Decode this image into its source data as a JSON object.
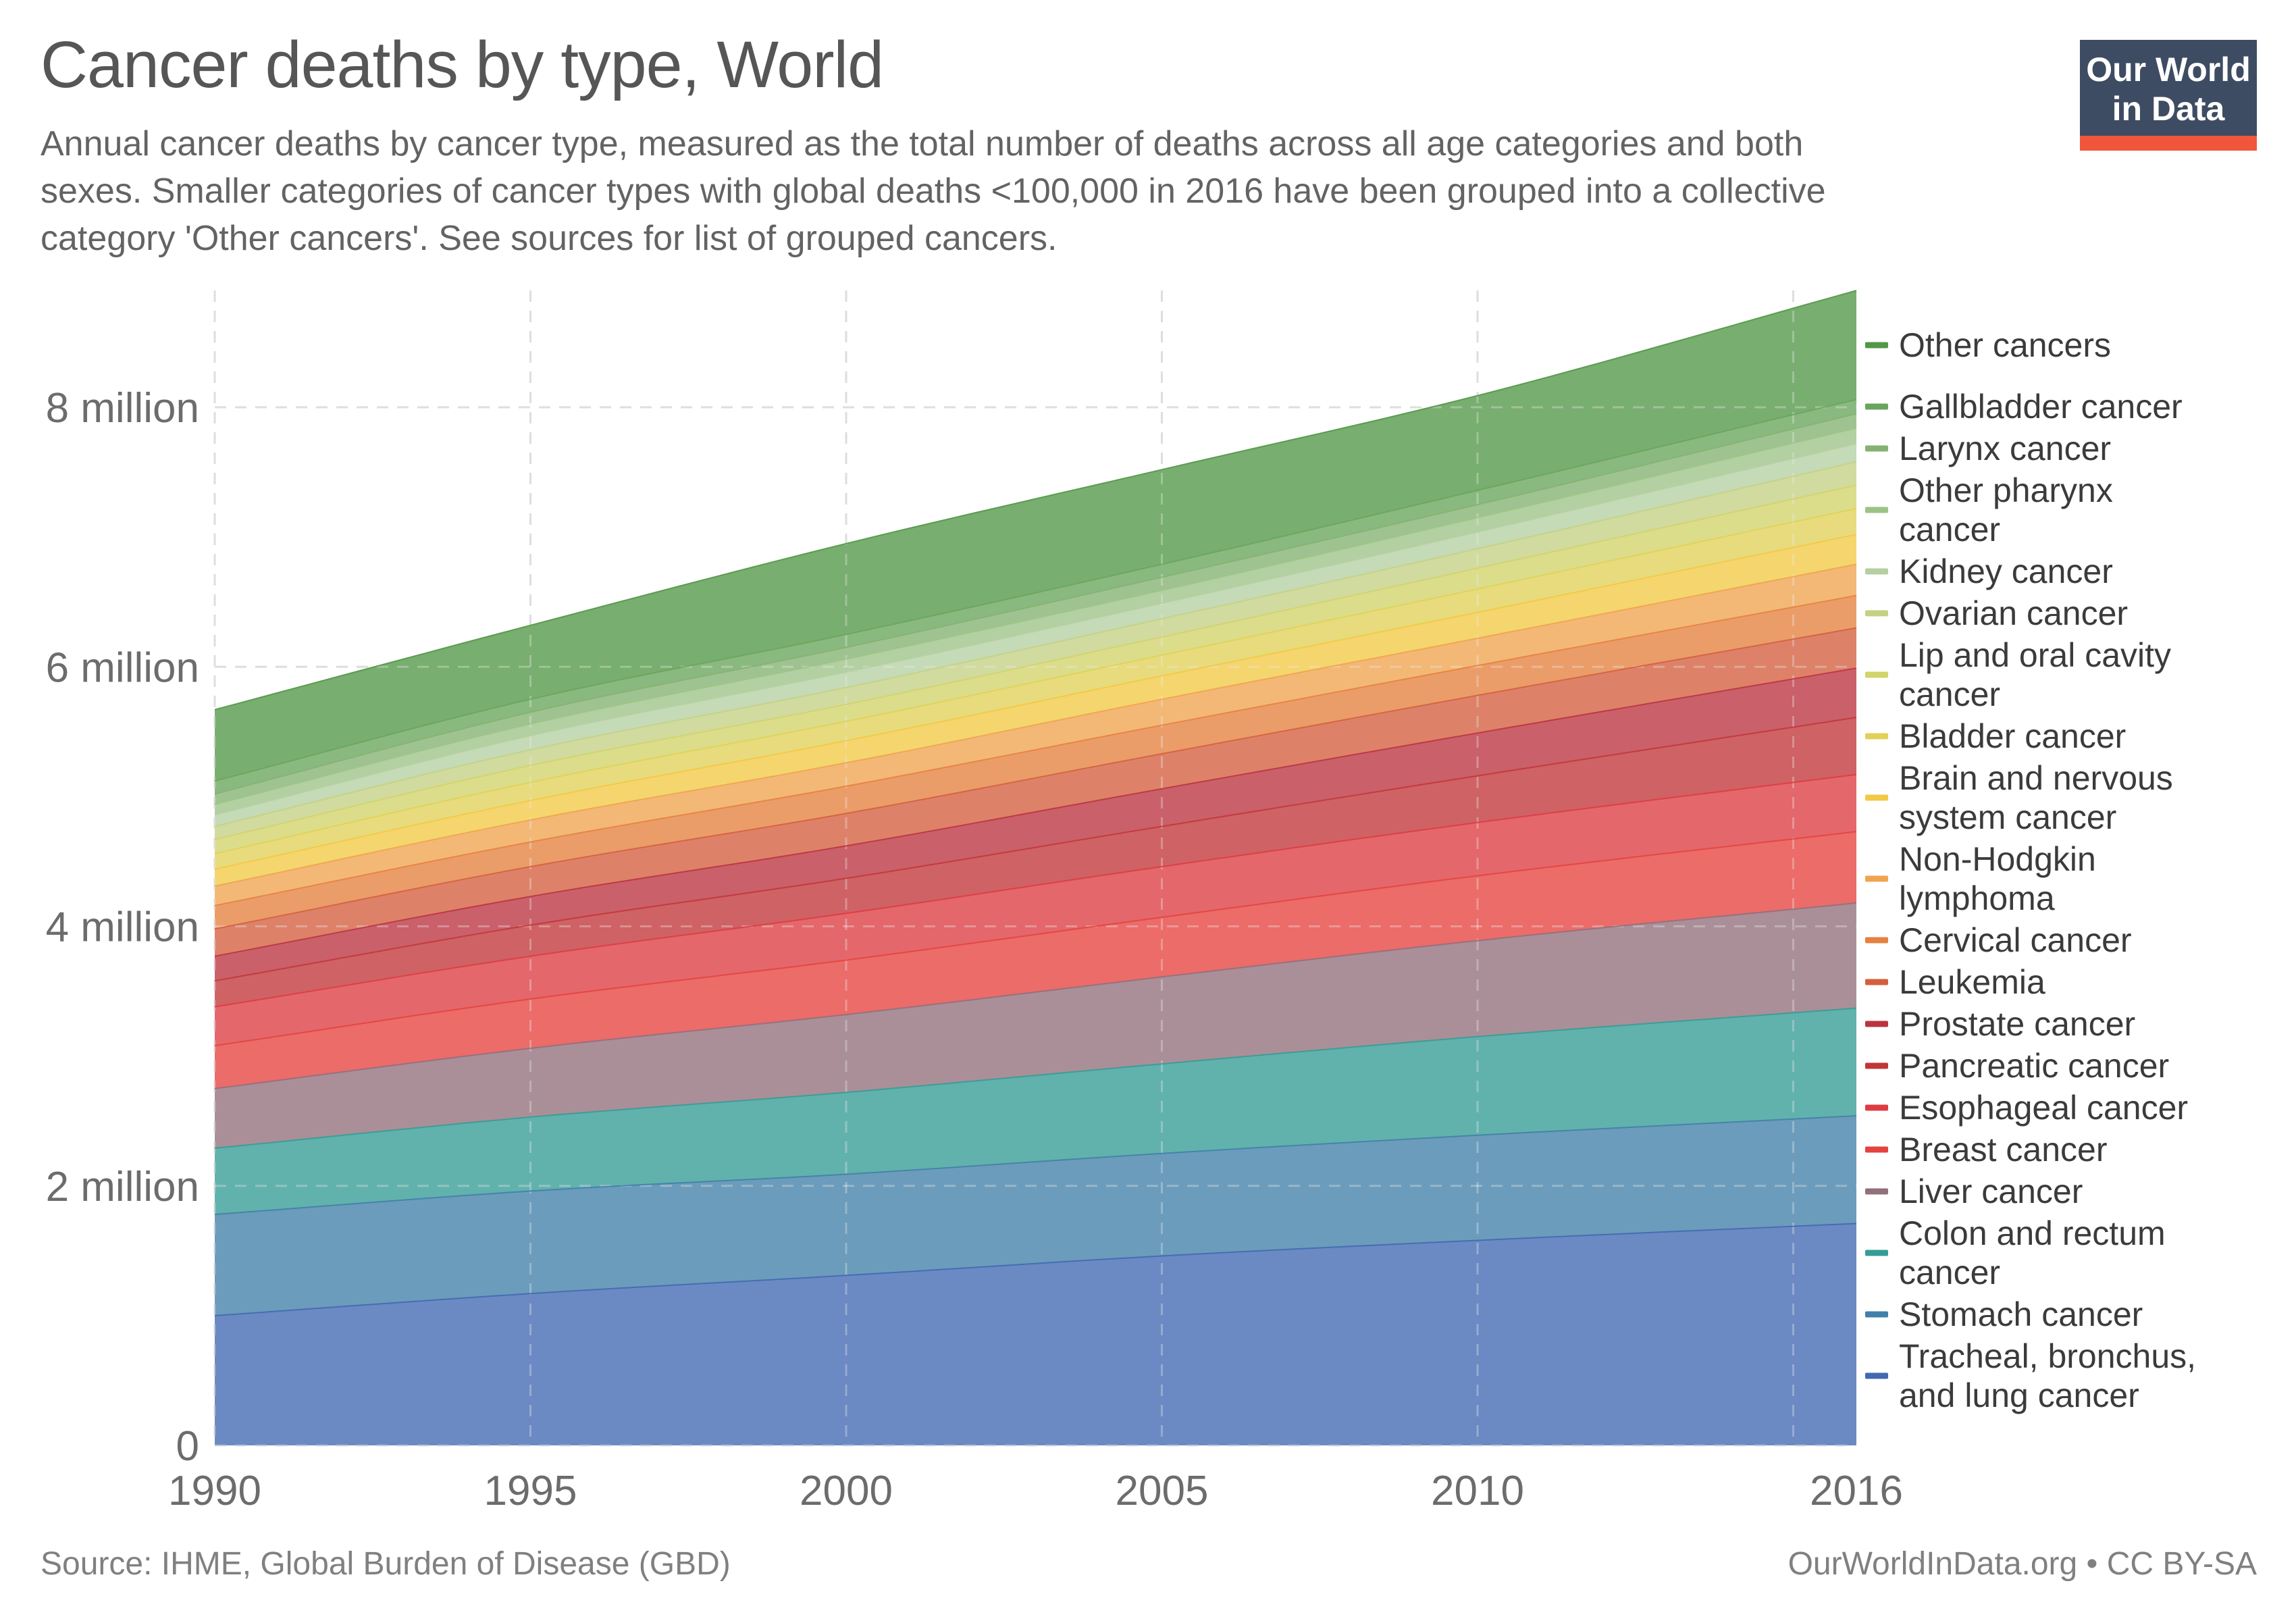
{
  "header": {
    "title": "Cancer deaths by type, World",
    "subtitle": "Annual cancer deaths by cancer type, measured as the total number of deaths across all age categories and both sexes. Smaller categories of cancer types with global deaths <100,000 in 2016 have been grouped into a collective category 'Other cancers'. See sources for list of grouped cancers.",
    "logo": {
      "line1": "Our World",
      "line2": "in Data",
      "bg_color": "#3e4c63",
      "bar_color": "#f0563c"
    }
  },
  "footer": {
    "source": "Source: IHME, Global Burden of Disease (GBD)",
    "license": "OurWorldInData.org • CC BY-SA"
  },
  "chart_data": {
    "type": "area",
    "stacked": true,
    "x": [
      1990,
      1995,
      2000,
      2005,
      2010,
      2016
    ],
    "x_tick_labels": [
      {
        "year": 1990,
        "label": "1990"
      },
      {
        "year": 1995,
        "label": "1995"
      },
      {
        "year": 2000,
        "label": "2000"
      },
      {
        "year": 2005,
        "label": "2005"
      },
      {
        "year": 2010,
        "label": "2010"
      },
      {
        "year": 2016,
        "label": "2016"
      }
    ],
    "gridline_years": [
      1990,
      1995,
      2000,
      2005,
      2010,
      2015
    ],
    "y_ticks": [
      {
        "value": 0,
        "label": "0"
      },
      {
        "value": 2,
        "label": "2 million"
      },
      {
        "value": 4,
        "label": "4 million"
      },
      {
        "value": 6,
        "label": "6 million"
      },
      {
        "value": 8,
        "label": "8 million"
      }
    ],
    "y_unit": "deaths (millions)",
    "grid": true,
    "legend_position": "right",
    "series": [
      {
        "id": "tracheal-bronchus-lung",
        "label_lines": [
          "Tracheal, bronchus,",
          "and lung cancer"
        ],
        "color": "#4169b2",
        "values": [
          1.0,
          1.17,
          1.31,
          1.46,
          1.58,
          1.71
        ]
      },
      {
        "id": "stomach",
        "label_lines": [
          "Stomach cancer"
        ],
        "color": "#4180a8",
        "values": [
          0.78,
          0.79,
          0.78,
          0.79,
          0.81,
          0.83
        ]
      },
      {
        "id": "colon-rectum",
        "label_lines": [
          "Colon and rectum",
          "cancer"
        ],
        "color": "#359c95",
        "values": [
          0.51,
          0.57,
          0.63,
          0.69,
          0.76,
          0.83
        ]
      },
      {
        "id": "liver",
        "label_lines": [
          "Liver cancer"
        ],
        "color": "#926f7c",
        "values": [
          0.46,
          0.53,
          0.6,
          0.67,
          0.74,
          0.81
        ]
      },
      {
        "id": "breast",
        "label_lines": [
          "Breast cancer"
        ],
        "color": "#e5433f",
        "values": [
          0.33,
          0.38,
          0.42,
          0.46,
          0.5,
          0.55
        ]
      },
      {
        "id": "esophageal",
        "label_lines": [
          "Esophageal cancer"
        ],
        "color": "#dd3c41",
        "values": [
          0.3,
          0.33,
          0.36,
          0.39,
          0.41,
          0.44
        ]
      },
      {
        "id": "pancreatic",
        "label_lines": [
          "Pancreatic cancer"
        ],
        "color": "#c23638",
        "values": [
          0.2,
          0.24,
          0.27,
          0.31,
          0.36,
          0.44
        ]
      },
      {
        "id": "prostate",
        "label_lines": [
          "Prostate cancer"
        ],
        "color": "#bb3340",
        "values": [
          0.19,
          0.22,
          0.25,
          0.29,
          0.33,
          0.38
        ]
      },
      {
        "id": "leukemia",
        "label_lines": [
          "Leukemia"
        ],
        "color": "#d45f3f",
        "values": [
          0.21,
          0.23,
          0.25,
          0.27,
          0.29,
          0.31
        ]
      },
      {
        "id": "cervical",
        "label_lines": [
          "Cervical cancer"
        ],
        "color": "#e5823f",
        "values": [
          0.18,
          0.19,
          0.21,
          0.22,
          0.23,
          0.25
        ]
      },
      {
        "id": "non-hodgkin-lymphoma",
        "label_lines": [
          "Non-Hodgkin",
          "lymphoma"
        ],
        "color": "#efa450",
        "values": [
          0.15,
          0.17,
          0.18,
          0.2,
          0.21,
          0.24
        ]
      },
      {
        "id": "brain-nervous-system",
        "label_lines": [
          "Brain and nervous",
          "system cancer"
        ],
        "color": "#f2c945",
        "values": [
          0.13,
          0.15,
          0.17,
          0.18,
          0.2,
          0.23
        ]
      },
      {
        "id": "bladder",
        "label_lines": [
          "Bladder cancer"
        ],
        "color": "#e0d158",
        "values": [
          0.12,
          0.14,
          0.15,
          0.16,
          0.18,
          0.2
        ]
      },
      {
        "id": "lip-oral-cavity",
        "label_lines": [
          "Lip and oral cavity",
          "cancer"
        ],
        "color": "#d2d36a",
        "values": [
          0.11,
          0.13,
          0.13,
          0.14,
          0.16,
          0.18
        ]
      },
      {
        "id": "ovarian",
        "label_lines": [
          "Ovarian cancer"
        ],
        "color": "#c4d184",
        "values": [
          0.1,
          0.12,
          0.13,
          0.14,
          0.15,
          0.18
        ]
      },
      {
        "id": "kidney",
        "label_lines": [
          "Kidney cancer"
        ],
        "color": "#b5cfa2",
        "values": [
          0.09,
          0.11,
          0.12,
          0.12,
          0.13,
          0.14
        ]
      },
      {
        "id": "other-pharynx",
        "label_lines": [
          "Other pharynx",
          "cancer"
        ],
        "color": "#9cc386",
        "values": [
          0.08,
          0.09,
          0.1,
          0.1,
          0.11,
          0.12
        ]
      },
      {
        "id": "larynx",
        "label_lines": [
          "Larynx cancer"
        ],
        "color": "#84b271",
        "values": [
          0.08,
          0.09,
          0.09,
          0.1,
          0.1,
          0.11
        ]
      },
      {
        "id": "gallbladder",
        "label_lines": [
          "Gallbladder cancer"
        ],
        "color": "#69a55c",
        "values": [
          0.1,
          0.1,
          0.1,
          0.1,
          0.11,
          0.11
        ]
      },
      {
        "id": "other-cancers",
        "label_lines": [
          "Other cancers"
        ],
        "color": "#529747",
        "values": [
          0.55,
          0.57,
          0.7,
          0.73,
          0.73,
          0.84
        ]
      }
    ]
  }
}
